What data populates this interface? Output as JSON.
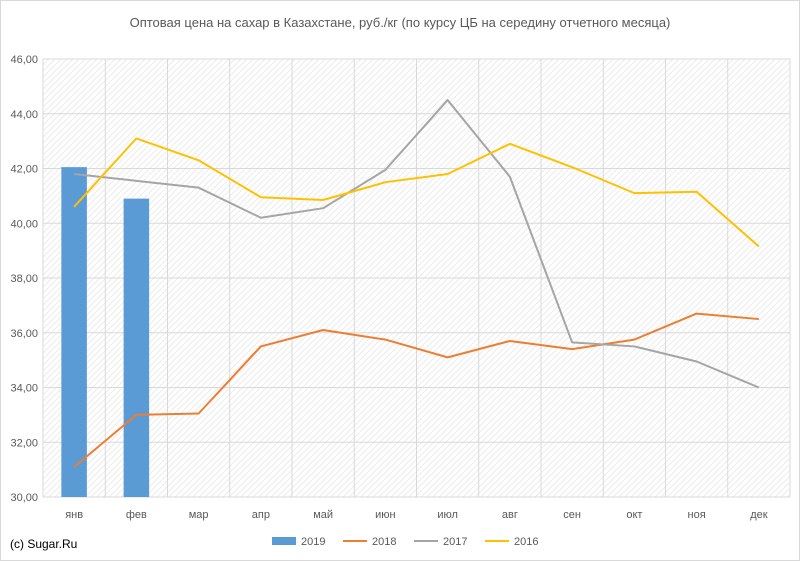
{
  "chart_data": {
    "type": "bar+line",
    "title": "Оптовая цена на сахар в Казахстане, руб./кг (по курсу ЦБ на середину отчетного месяца)",
    "categories": [
      "янв",
      "фев",
      "мар",
      "апр",
      "май",
      "июн",
      "июл",
      "авг",
      "сен",
      "окт",
      "ноя",
      "дек"
    ],
    "ylim": [
      30,
      46
    ],
    "yticks": [
      "30,00",
      "32,00",
      "34,00",
      "36,00",
      "38,00",
      "40,00",
      "42,00",
      "44,00",
      "46,00"
    ],
    "grid": true,
    "legend_position": "bottom",
    "series": [
      {
        "name": "2019",
        "type": "bar",
        "color": "#5b9bd5",
        "values": [
          42.05,
          40.9,
          null,
          null,
          null,
          null,
          null,
          null,
          null,
          null,
          null,
          null
        ]
      },
      {
        "name": "2018",
        "type": "line",
        "color": "#ed7d31",
        "values": [
          31.1,
          33.0,
          33.05,
          35.5,
          36.1,
          35.75,
          35.1,
          35.7,
          35.4,
          35.75,
          36.7,
          36.5
        ]
      },
      {
        "name": "2017",
        "type": "line",
        "color": "#a5a5a5",
        "values": [
          41.8,
          41.55,
          41.3,
          40.2,
          40.55,
          41.95,
          44.5,
          41.7,
          35.65,
          35.5,
          34.95,
          34.0
        ]
      },
      {
        "name": "2016",
        "type": "line",
        "color": "#ffc000",
        "values": [
          40.6,
          43.1,
          42.3,
          40.95,
          40.85,
          41.5,
          41.8,
          42.9,
          42.05,
          41.1,
          41.15,
          39.15
        ]
      }
    ]
  },
  "footer": {
    "credit": "(c) Sugar.Ru"
  }
}
